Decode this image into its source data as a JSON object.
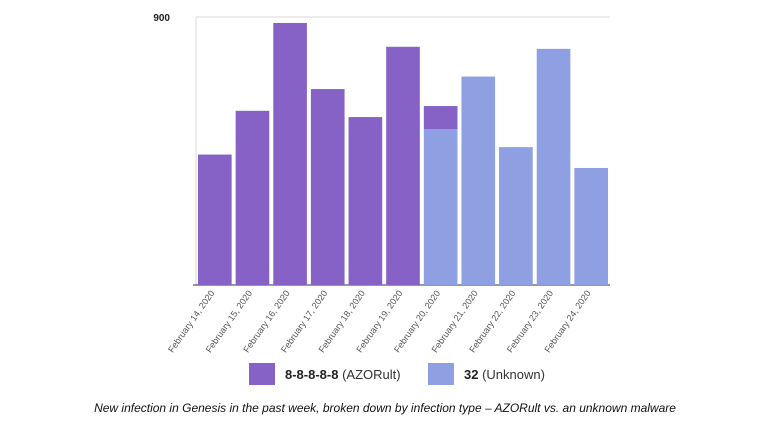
{
  "chart_data": {
    "type": "bar",
    "stacked": true,
    "categories": [
      "February 14, 2020",
      "February 15, 2020",
      "February 16, 2020",
      "February 17, 2020",
      "February 18, 2020",
      "February 19, 2020",
      "February 20, 2020",
      "February 21, 2020",
      "February 22, 2020",
      "February 23, 2020",
      "February 24, 2020"
    ],
    "series": [
      {
        "name": "32",
        "values": [
          0,
          0,
          0,
          0,
          0,
          0,
          523,
          700,
          463,
          793,
          393
        ],
        "color": "#8fa0e2"
      },
      {
        "name": "8-8-8-8-8",
        "values": [
          438,
          585,
          880,
          658,
          564,
          800,
          78,
          0,
          0,
          0,
          0
        ],
        "color": "#8662c7"
      }
    ],
    "ylim": [
      0,
      900
    ],
    "ytick_labels": [
      "900"
    ],
    "grid": true,
    "legend_position": "bottom"
  },
  "legend": {
    "items": [
      {
        "bold": "8-8-8-8-8",
        "rest": " (AZORult)",
        "color": "#8662c7"
      },
      {
        "bold": "32",
        "rest": " (Unknown)",
        "color": "#8fa0e2"
      }
    ]
  },
  "caption": "New infection in Genesis in the past week, broken down by infection type – AZORult vs. an unknown malware"
}
